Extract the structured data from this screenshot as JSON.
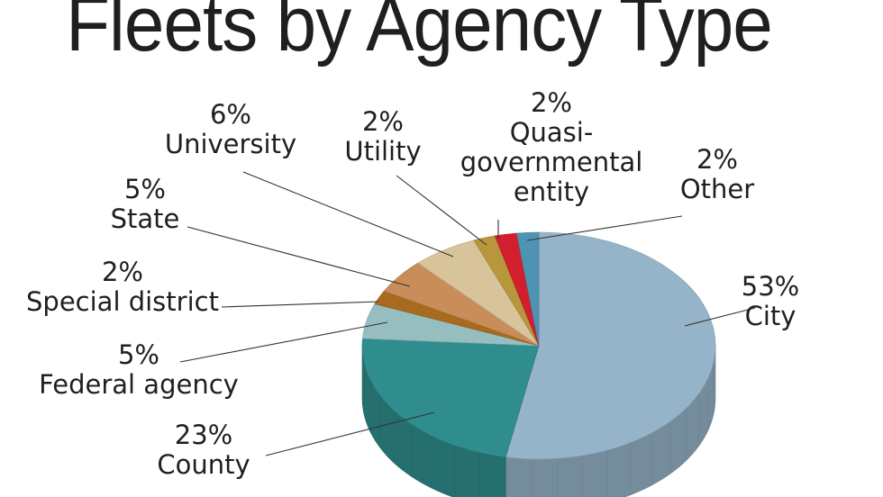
{
  "title": "Fleets by Agency Type",
  "chart_data": {
    "type": "pie",
    "title": "Fleets by Agency Type",
    "slices": [
      {
        "label": "City",
        "pct_label": "53%",
        "value": 53,
        "color": "#96b4c9"
      },
      {
        "label": "County",
        "pct_label": "23%",
        "value": 23,
        "color": "#2f8e8d"
      },
      {
        "label": "Federal agency",
        "pct_label": "5%",
        "value": 5,
        "color": "#96bec0"
      },
      {
        "label": "Special district",
        "pct_label": "2%",
        "value": 2,
        "color": "#a86a1e"
      },
      {
        "label": "State",
        "pct_label": "5%",
        "value": 5,
        "color": "#c98d5a"
      },
      {
        "label": "University",
        "pct_label": "6%",
        "value": 6,
        "color": "#d8c49a"
      },
      {
        "label": "Utility",
        "pct_label": "2%",
        "value": 2,
        "color": "#b8963c"
      },
      {
        "label": "Quasi-governmental entity",
        "label_lines": [
          "Quasi-",
          "governmental",
          "entity"
        ],
        "pct_label": "2%",
        "value": 2,
        "color": "#d21f2d"
      },
      {
        "label": "Other",
        "pct_label": "2%",
        "value": 2,
        "color": "#4f93b3"
      }
    ]
  }
}
